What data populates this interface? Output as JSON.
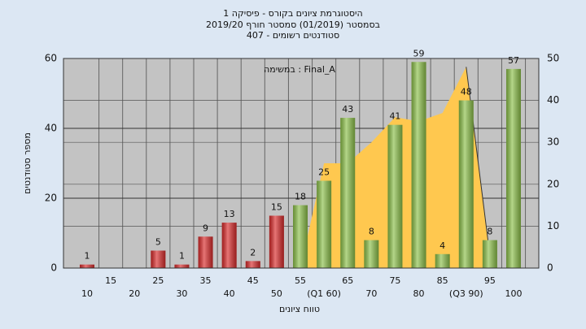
{
  "chart_data": {
    "type": "bar",
    "title": [
      "היסטוגרמת ציונים בקורס - פיסיקה 1",
      "בסמסטר  (01/2019)  סמסטר חורף 2019/20",
      "סטודנטים רשומים - 407"
    ],
    "annotation": "Final_A : במשימה",
    "x_label": "טווח ציונים",
    "y_label": "מספר סטודנטים",
    "categories": [
      "10",
      "15",
      "20",
      "25",
      "30",
      "35",
      "40",
      "45",
      "50",
      "55",
      "(Q1 60)",
      "65",
      "70",
      "75",
      "80",
      "85",
      "(Q3 90)",
      "95",
      "100"
    ],
    "values": [
      1,
      0,
      0,
      5,
      1,
      9,
      13,
      2,
      15,
      18,
      25,
      43,
      8,
      41,
      59,
      4,
      48,
      8,
      57
    ],
    "colors": [
      "#d92b2b",
      "#d92b2b",
      "#d92b2b",
      "#d92b2b",
      "#d92b2b",
      "#d92b2b",
      "#d92b2b",
      "#d92b2b",
      "#d92b2b",
      "#8cc04a",
      "#8cc04a",
      "#8cc04a",
      "#8cc04a",
      "#8cc04a",
      "#8cc04a",
      "#8cc04a",
      "#8cc04a",
      "#8cc04a",
      "#8cc04a"
    ],
    "area": {
      "axis": "y2",
      "color": "#ffc84f",
      "values": [
        null,
        null,
        null,
        null,
        null,
        null,
        null,
        null,
        null,
        0,
        25,
        25,
        30,
        36,
        35,
        37,
        48,
        3,
        null
      ]
    },
    "ylim": [
      0,
      60
    ],
    "yticks": [
      0,
      20,
      40,
      60
    ],
    "y2lim": [
      0,
      50
    ],
    "y2ticks": [
      0,
      10,
      20,
      30,
      40,
      50
    ],
    "grid": true
  }
}
